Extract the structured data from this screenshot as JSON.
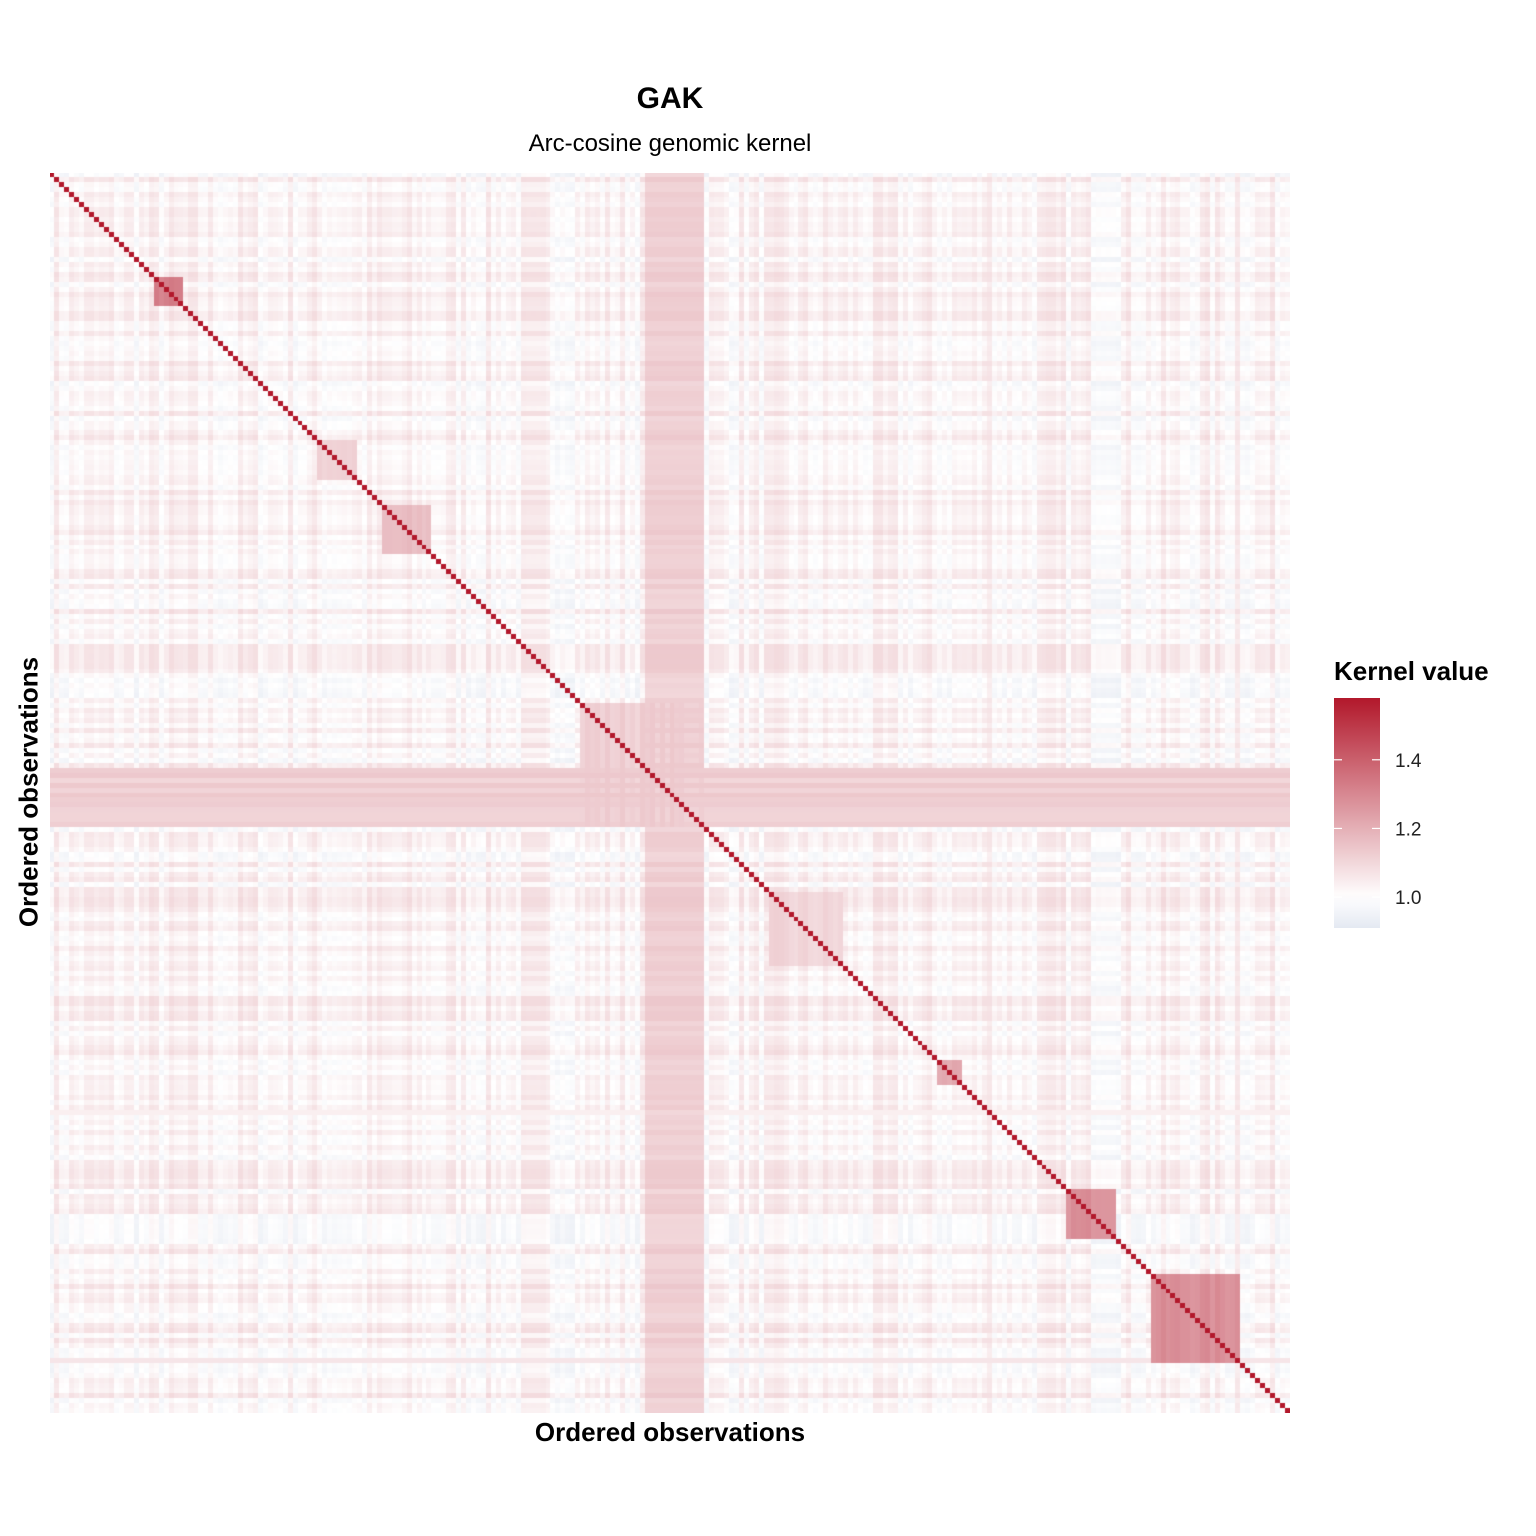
{
  "chart_data": {
    "type": "heatmap",
    "title": "GAK",
    "subtitle": "Arc-cosine genomic kernel",
    "xlabel": "Ordered observations",
    "ylabel": "Ordered observations",
    "legend": {
      "title": "Kernel value",
      "placement": "right",
      "min": 0.91,
      "max": 1.58,
      "ticks": [
        1.0,
        1.2,
        1.4
      ],
      "tick_labels": [
        "1.0",
        "1.2",
        "1.4"
      ]
    },
    "colors": {
      "low": "#e4e9f2",
      "mid": "#ffffff",
      "high": "#b2182b",
      "midpoint": 1.0
    },
    "n_observations": 250,
    "diagonal_value": 1.58,
    "background_value": 1.02,
    "block_clusters": [
      {
        "from": 0.095,
        "to": 0.11,
        "value": 1.2
      },
      {
        "from": 0.085,
        "to": 0.11,
        "value": 1.32
      },
      {
        "from": 0.27,
        "to": 0.31,
        "value": 1.16
      },
      {
        "from": 0.215,
        "to": 0.25,
        "value": 1.12
      },
      {
        "from": 0.43,
        "to": 0.53,
        "value": 1.12
      },
      {
        "from": 0.58,
        "to": 0.64,
        "value": 1.1
      },
      {
        "from": 0.715,
        "to": 0.738,
        "value": 1.22
      },
      {
        "from": 0.822,
        "to": 0.86,
        "value": 1.28
      },
      {
        "from": 0.89,
        "to": 0.96,
        "value": 1.28
      }
    ],
    "stripes": [
      {
        "from": 0.48,
        "to": 0.53,
        "value": 1.12
      },
      {
        "from": 0.955,
        "to": 0.96,
        "value": 1.06
      },
      {
        "from": 0.755,
        "to": 0.76,
        "value": 1.06
      }
    ]
  }
}
